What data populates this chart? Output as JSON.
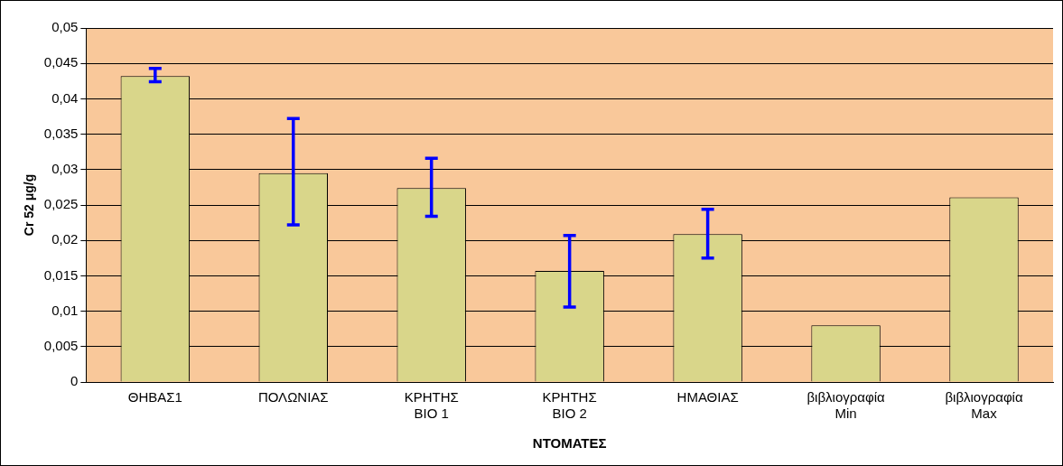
{
  "chart_data": {
    "type": "bar",
    "xlabel": "ΝΤΟΜΑΤΕΣ",
    "ylabel": "Cr 52 μg/g",
    "categories": [
      "ΘΗΒΑΣ1",
      "ΠΟΛΩΝΙΑΣ",
      "ΚΡΗΤΗΣ ΒΙΟ 1",
      "ΚΡΗΤΗΣ ΒΙΟ 2",
      "ΗΜΑΘΙΑΣ",
      "βιβλιογραφία Min",
      "βιβλιογραφία Max"
    ],
    "values": [
      0.0432,
      0.0295,
      0.0274,
      0.0157,
      0.0209,
      0.008,
      0.0261
    ],
    "errors": [
      [
        0.0424,
        0.0443
      ],
      [
        0.0222,
        0.0372
      ],
      [
        0.0234,
        0.0316
      ],
      [
        0.0106,
        0.0207
      ],
      [
        0.0175,
        0.0244
      ],
      null,
      null
    ],
    "color": "#d9d68a",
    "ylim": [
      0,
      0.05
    ],
    "yticks": [
      {
        "value": 0,
        "label": "0"
      },
      {
        "value": 0.005,
        "label": "0,005"
      },
      {
        "value": 0.01,
        "label": "0,01"
      },
      {
        "value": 0.015,
        "label": "0,015"
      },
      {
        "value": 0.02,
        "label": "0,02"
      },
      {
        "value": 0.025,
        "label": "0,025"
      },
      {
        "value": 0.03,
        "label": "0,03"
      },
      {
        "value": 0.035,
        "label": "0,035"
      },
      {
        "value": 0.04,
        "label": "0,04"
      },
      {
        "value": 0.045,
        "label": "0,045"
      },
      {
        "value": 0.05,
        "label": "0,05"
      }
    ],
    "grid": "y",
    "legend": false
  }
}
